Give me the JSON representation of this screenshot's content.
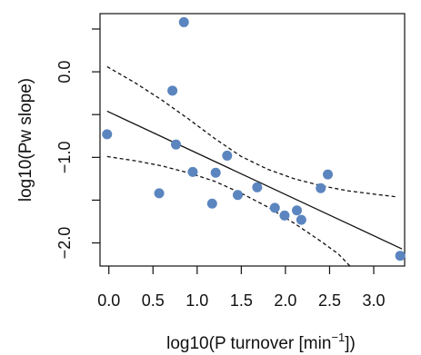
{
  "chart_data": {
    "type": "scatter",
    "xlabel": "log10(P turnover [min",
    "xlabel_superscript": "−1",
    "xlabel_end": "])",
    "ylabel": "log10(Pw slope)",
    "xlim": [
      -0.1,
      3.35
    ],
    "ylim": [
      -2.27,
      0.68
    ],
    "x_ticks": [
      0.0,
      0.5,
      1.0,
      1.5,
      2.0,
      2.5,
      3.0
    ],
    "x_tick_labels": [
      "0.0",
      "0.5",
      "1.0",
      "1.5",
      "2.0",
      "2.5",
      "3.0"
    ],
    "y_ticks": [
      0.0,
      -1.0,
      -2.0
    ],
    "y_tick_labels": [
      "0.0",
      "−1.0",
      "−2.0"
    ],
    "y_minor_ticks": [
      0.5,
      -0.5,
      -1.5
    ],
    "grid": false,
    "point_color": "#5b85bf",
    "points": [
      {
        "x": -0.02,
        "y": -0.73
      },
      {
        "x": 0.57,
        "y": -1.42
      },
      {
        "x": 0.72,
        "y": -0.22
      },
      {
        "x": 0.76,
        "y": -0.85
      },
      {
        "x": 0.85,
        "y": 0.58
      },
      {
        "x": 0.95,
        "y": -1.17
      },
      {
        "x": 1.17,
        "y": -1.54
      },
      {
        "x": 1.21,
        "y": -1.18
      },
      {
        "x": 1.34,
        "y": -0.98
      },
      {
        "x": 1.46,
        "y": -1.44
      },
      {
        "x": 1.68,
        "y": -1.35
      },
      {
        "x": 1.88,
        "y": -1.59
      },
      {
        "x": 1.99,
        "y": -1.68
      },
      {
        "x": 2.13,
        "y": -1.62
      },
      {
        "x": 2.18,
        "y": -1.73
      },
      {
        "x": 2.4,
        "y": -1.36
      },
      {
        "x": 2.48,
        "y": -1.2
      },
      {
        "x": 3.3,
        "y": -2.15
      }
    ],
    "fit_line": {
      "x": [
        -0.02,
        3.32
      ],
      "y": [
        -0.46,
        -2.07
      ]
    },
    "confidence_upper": {
      "x": [
        -0.02,
        0.3,
        0.6,
        0.9,
        1.2,
        1.5,
        1.8,
        2.1,
        2.4,
        2.7,
        3.0,
        3.25
      ],
      "y": [
        0.06,
        -0.13,
        -0.33,
        -0.55,
        -0.78,
        -0.99,
        -1.14,
        -1.25,
        -1.33,
        -1.39,
        -1.43,
        -1.46
      ]
    },
    "confidence_lower": {
      "x": [
        -0.02,
        0.3,
        0.6,
        0.9,
        1.2,
        1.5,
        1.8,
        2.1,
        2.4,
        2.6,
        2.73
      ],
      "y": [
        -0.99,
        -1.04,
        -1.1,
        -1.18,
        -1.28,
        -1.42,
        -1.58,
        -1.77,
        -1.98,
        -2.13,
        -2.27
      ]
    }
  }
}
